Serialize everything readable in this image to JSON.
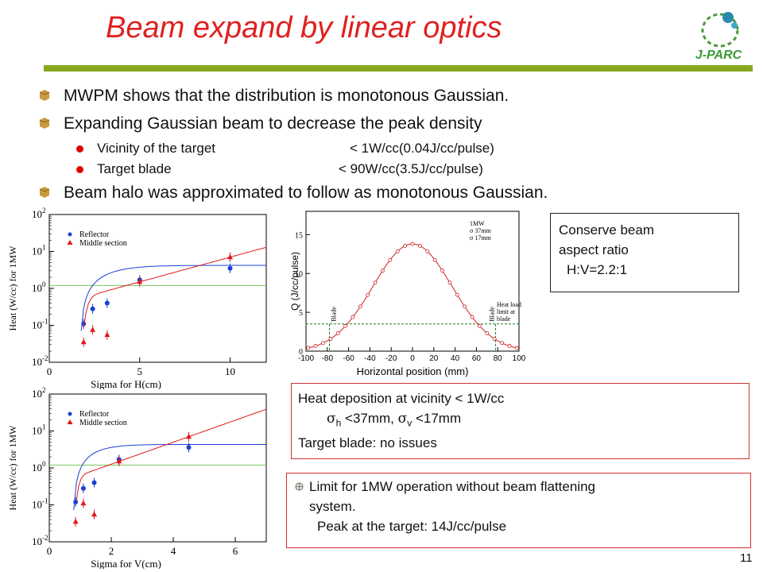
{
  "slide": {
    "title": "Beam expand by linear optics",
    "page_number": "11",
    "logo_text": "J-PARC",
    "accent_color": "#88a820",
    "title_color": "#e02020"
  },
  "bullets": {
    "l1_a": "MWPM shows that the distribution is monotonous Gaussian.",
    "l1_b": "Expanding Gaussian beam to decrease the peak density",
    "sub_a_label": "Vicinity of the target",
    "sub_a_value": "< 1W/cc(0.04J/cc/pulse)",
    "sub_b_label": "Target blade",
    "sub_b_value": "<   90W/cc(3.5J/cc/pulse)",
    "l1_c": "Beam halo was approximated to follow as monotonous Gaussian."
  },
  "boxes": {
    "aspect_l1": "Conserve beam",
    "aspect_l2": "aspect ratio",
    "aspect_l3": "H:V=2.2:1",
    "heat_l1": "Heat deposition at vicinity < 1W/cc",
    "heat_sigma_h": "h",
    "heat_mid": " <37mm, ",
    "heat_sigma_v": "v",
    "heat_end": " <17mm",
    "heat_l3": "Target blade: no issues",
    "limit_l1": "Limit for 1MW operation without beam flattening",
    "limit_l2": "system.",
    "limit_l3": "Peak at the target: 14J/cc/pulse"
  },
  "chart_data": [
    {
      "type": "scatter",
      "xlabel": "Sigma for H(cm)",
      "ylabel": "Heat (W/cc) for 1MW",
      "log_y": true,
      "xlim": [
        0,
        12
      ],
      "ylim_exp": [
        -2,
        2
      ],
      "x_ticks": [
        0,
        5,
        10
      ],
      "y_tick_labels": [
        "10^-2",
        "10^-1",
        "10^0",
        "10^1",
        "10^2"
      ],
      "reference_line": 1.2,
      "series": [
        {
          "name": "Reflector",
          "color": "#1a3fd8",
          "marker": "circle",
          "x": [
            1.9,
            2.4,
            3.2,
            5.0,
            10.0
          ],
          "y": [
            0.11,
            0.28,
            0.4,
            1.7,
            3.5
          ]
        },
        {
          "name": "Middle section",
          "color": "#e01818",
          "marker": "triangle",
          "x": [
            1.9,
            2.4,
            3.2,
            5.0,
            10.0
          ],
          "y": [
            0.035,
            0.075,
            0.055,
            1.5,
            7.0
          ]
        }
      ]
    },
    {
      "type": "line",
      "xlabel": "Horizontal position (mm)",
      "ylabel": "Q (J/cc/pulse)",
      "xlim": [
        -100,
        100
      ],
      "ylim": [
        0,
        18
      ],
      "x_ticks": [
        -100,
        -80,
        -60,
        -40,
        -20,
        0,
        20,
        40,
        60,
        80,
        100
      ],
      "y_ticks": [
        0,
        5,
        10,
        15
      ],
      "gaussian": {
        "peak": 13.8,
        "sigma_mm": 37
      },
      "blade_positions": [
        -78,
        78
      ],
      "threshold": 3.5,
      "annotations": [
        "1MW",
        "σ 37mm",
        "σ 17mm",
        "Blade",
        "Blade",
        "Heat load",
        "limit at",
        "blade"
      ]
    },
    {
      "type": "scatter",
      "xlabel": "Sigma for V(cm)",
      "ylabel": "Heat (W/cc) for 1MW",
      "log_y": true,
      "xlim": [
        0,
        7
      ],
      "ylim_exp": [
        -2,
        2
      ],
      "x_ticks": [
        0,
        2,
        4,
        6
      ],
      "y_tick_labels": [
        "10^-2",
        "10^-1",
        "10^0",
        "10^1",
        "10^2"
      ],
      "reference_line": 1.2,
      "series": [
        {
          "name": "Reflector",
          "color": "#1a3fd8",
          "marker": "circle",
          "x": [
            0.85,
            1.1,
            1.45,
            2.25,
            4.5
          ],
          "y": [
            0.12,
            0.28,
            0.4,
            1.7,
            3.6
          ]
        },
        {
          "name": "Middle section",
          "color": "#e01818",
          "marker": "triangle",
          "x": [
            0.85,
            1.1,
            1.45,
            2.25,
            4.5
          ],
          "y": [
            0.035,
            0.11,
            0.055,
            1.5,
            7.0
          ]
        }
      ]
    }
  ]
}
